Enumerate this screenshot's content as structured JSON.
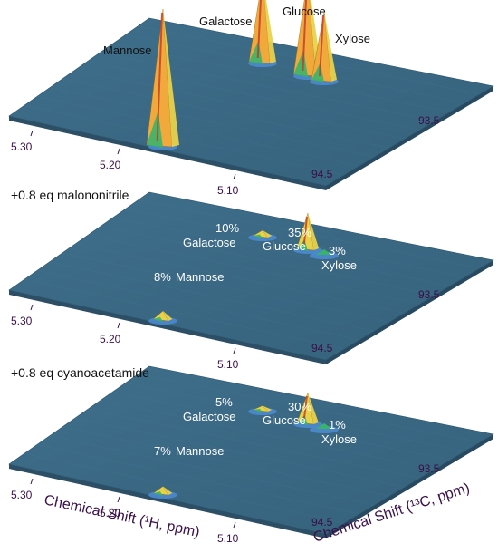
{
  "panels": [
    {
      "label": "",
      "peaks": [
        {
          "name": "Mannose",
          "pct": "",
          "height": 1.0
        },
        {
          "name": "Galactose",
          "pct": "",
          "height": 0.62
        },
        {
          "name": "Glucose",
          "pct": "",
          "height": 0.72
        },
        {
          "name": "Xylose",
          "pct": "",
          "height": 0.5
        }
      ]
    },
    {
      "label": "+0.8 eq malononitrile",
      "peaks": [
        {
          "name": "Mannose",
          "pct": "8%",
          "height": 0.06
        },
        {
          "name": "Galactose",
          "pct": "10%",
          "height": 0.04
        },
        {
          "name": "Glucose",
          "pct": "35%",
          "height": 0.26
        },
        {
          "name": "Xylose",
          "pct": "3%",
          "height": 0.0
        }
      ]
    },
    {
      "label": "+0.8 eq cyanoacetamide",
      "peaks": [
        {
          "name": "Mannose",
          "pct": "7%",
          "height": 0.05
        },
        {
          "name": "Galactose",
          "pct": "5%",
          "height": 0.03
        },
        {
          "name": "Glucose",
          "pct": "30%",
          "height": 0.22
        },
        {
          "name": "Xylose",
          "pct": "1%",
          "height": 0.0
        }
      ]
    }
  ],
  "chart_data": {
    "type": "surface-3d",
    "x_axis_title": "Chemical Shift (¹H, ppm)",
    "y_axis_title": "Chemical Shift (¹³C, ppm)",
    "x_ticks": [
      "5.30",
      "5.20",
      "5.10"
    ],
    "y_ticks": [
      "94.5",
      "93.5"
    ],
    "series": [
      {
        "name": "Mannose",
        "values": [
          1.0,
          0.08,
          0.07
        ]
      },
      {
        "name": "Galactose",
        "values": [
          0.62,
          0.1,
          0.05
        ]
      },
      {
        "name": "Glucose",
        "values": [
          0.72,
          0.35,
          0.3
        ]
      },
      {
        "name": "Xylose",
        "values": [
          0.5,
          0.03,
          0.01
        ]
      }
    ]
  },
  "colors": {
    "surface": "#3d6a86",
    "surface_edge": "#2c4f66",
    "peak_high": "#f2a93b",
    "peak_mid": "#e8d24a",
    "peak_low": "#39b36b",
    "peak_dark": "#c0392b",
    "axis_text": "#3a0f4a"
  }
}
